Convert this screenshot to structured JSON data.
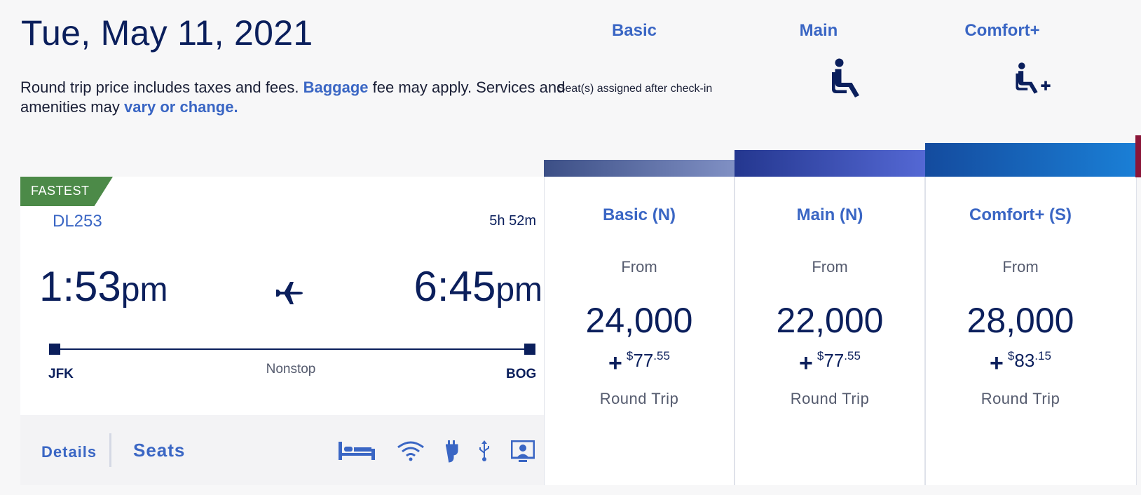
{
  "header": {
    "date": "Tue, May 11, 2021",
    "disclaimer_pre": "Round trip price includes taxes and fees.",
    "baggage_link": "Baggage",
    "disclaimer_mid": "fee may apply. Services and amenities may",
    "vary_link": "vary or change."
  },
  "fare_headers": [
    {
      "label": "Basic",
      "note": "Seat(s) assigned after check-in"
    },
    {
      "label": "Main",
      "icon": "seat-icon"
    },
    {
      "label": "Comfort+",
      "icon": "seat-plus-icon"
    }
  ],
  "flight": {
    "badge": "FASTEST",
    "number": "DL253",
    "duration": "5h 52m",
    "depart_time": "1:53",
    "depart_ampm": "pm",
    "arrive_time": "6:45",
    "arrive_ampm": "pm",
    "from": "JFK",
    "to": "BOG",
    "stops": "Nonstop",
    "details_label": "Details",
    "seats_label": "Seats",
    "amenities": [
      "flat-bed-icon",
      "wifi-icon",
      "power-outlet-icon",
      "usb-icon",
      "seatback-screen-icon"
    ]
  },
  "fares": [
    {
      "title": "Basic (N)",
      "from": "From",
      "miles": "24,000",
      "plus": "+",
      "currency": "$",
      "dollars": "77",
      "cents": ".55",
      "trip": "Round Trip",
      "cap_color": "#4a5f9c"
    },
    {
      "title": "Main (N)",
      "from": "From",
      "miles": "22,000",
      "plus": "+",
      "currency": "$",
      "dollars": "77",
      "cents": ".55",
      "trip": "Round Trip",
      "cap_color": "#2f48a8"
    },
    {
      "title": "Comfort+ (S)",
      "from": "From",
      "miles": "28,000",
      "plus": "+",
      "currency": "$",
      "dollars": "83",
      "cents": ".15",
      "trip": "Round Trip",
      "cap_color": "#1a6cc9"
    }
  ],
  "colors": {
    "accent": "#3a66c4",
    "navy": "#0b1f5c",
    "badge_green": "#4c8a48",
    "edge_strip": "#8a1538"
  }
}
